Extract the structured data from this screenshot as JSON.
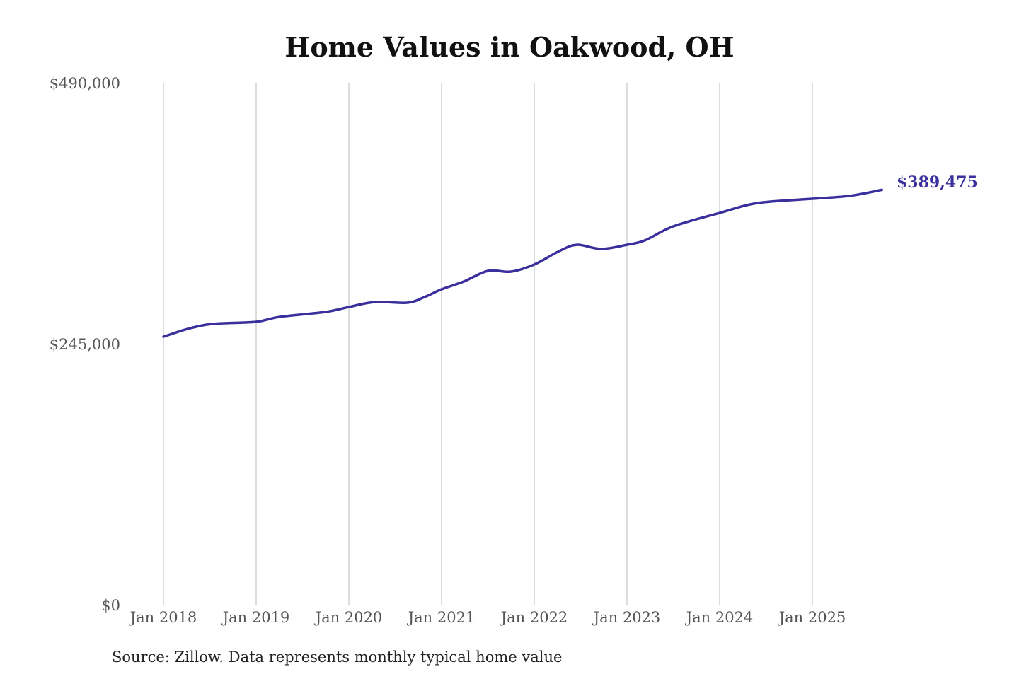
{
  "chart_data": {
    "type": "line",
    "title": "Home Values in Oakwood, OH",
    "xlabel": "",
    "ylabel": "",
    "ylim": [
      0,
      490000
    ],
    "xlim": [
      2018.0,
      2025.75
    ],
    "yticks": [
      {
        "value": 0,
        "label": "$0"
      },
      {
        "value": 245000,
        "label": "$245,000"
      },
      {
        "value": 490000,
        "label": "$490,000"
      }
    ],
    "xticks": [
      {
        "value": 2018,
        "label": "Jan 2018"
      },
      {
        "value": 2019,
        "label": "Jan 2019"
      },
      {
        "value": 2020,
        "label": "Jan 2020"
      },
      {
        "value": 2021,
        "label": "Jan 2021"
      },
      {
        "value": 2022,
        "label": "Jan 2022"
      },
      {
        "value": 2023,
        "label": "Jan 2023"
      },
      {
        "value": 2024,
        "label": "Jan 2024"
      },
      {
        "value": 2025,
        "label": "Jan 2025"
      }
    ],
    "grid": "vertical",
    "series": [
      {
        "name": "Typical home value",
        "color": "#3a2f9c",
        "points": [
          [
            2018.0,
            251600
          ],
          [
            2018.26,
            258900
          ],
          [
            2018.53,
            263600
          ],
          [
            2019.0,
            265600
          ],
          [
            2019.25,
            270200
          ],
          [
            2019.75,
            274900
          ],
          [
            2020.0,
            279500
          ],
          [
            2020.28,
            284200
          ],
          [
            2020.63,
            283500
          ],
          [
            2020.82,
            289000
          ],
          [
            2021.0,
            296100
          ],
          [
            2021.24,
            303400
          ],
          [
            2021.5,
            313400
          ],
          [
            2021.75,
            312700
          ],
          [
            2022.0,
            319400
          ],
          [
            2022.27,
            332000
          ],
          [
            2022.46,
            337900
          ],
          [
            2022.72,
            334000
          ],
          [
            2023.0,
            337900
          ],
          [
            2023.19,
            341900
          ],
          [
            2023.5,
            355200
          ],
          [
            2024.0,
            367800
          ],
          [
            2024.41,
            377100
          ],
          [
            2025.0,
            381100
          ],
          [
            2025.4,
            383800
          ],
          [
            2025.75,
            389475
          ]
        ]
      }
    ],
    "end_label": "$389,475",
    "legend": "none"
  },
  "source": "Source: Zillow. Data represents monthly typical home value"
}
